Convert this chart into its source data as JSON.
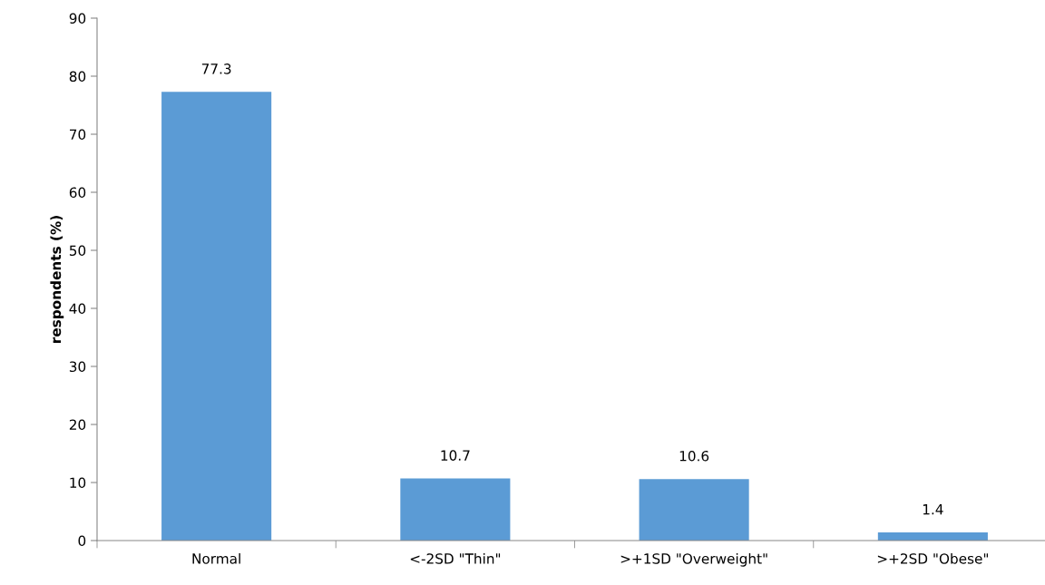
{
  "chart_data": {
    "type": "bar",
    "ylabel": "respondents (%)",
    "categories": [
      "Normal",
      "<-2SD \"Thin\"",
      ">+1SD \"Overweight\"",
      ">+2SD \"Obese\""
    ],
    "values": [
      77.3,
      10.7,
      10.6,
      1.4
    ],
    "color": "#5b9bd5",
    "ylim": [
      0,
      90
    ],
    "yticks": [
      0,
      10,
      20,
      30,
      40,
      50,
      60,
      70,
      80,
      90
    ],
    "data_labels": true,
    "grid": false,
    "legend": false
  }
}
